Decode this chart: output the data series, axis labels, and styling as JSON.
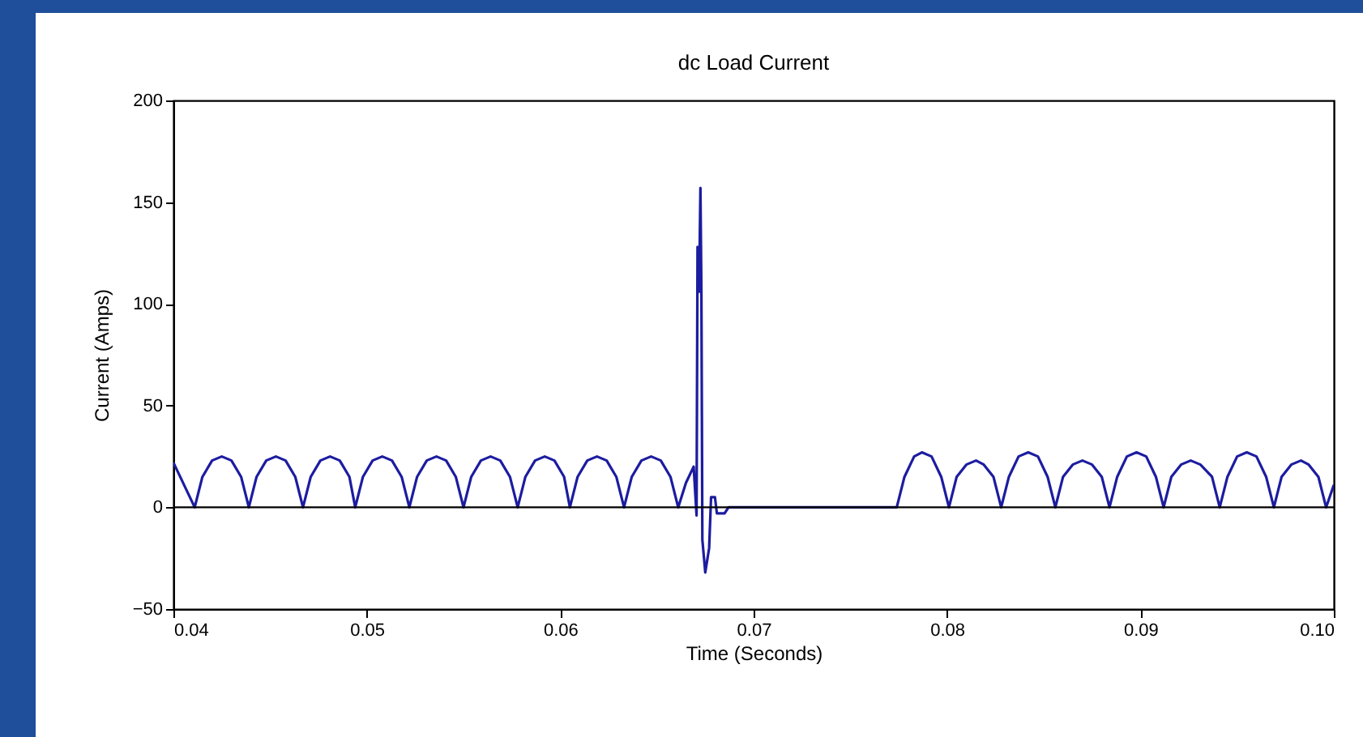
{
  "chart_data": {
    "type": "line",
    "title": "dc Load Current",
    "xlabel": "Time (Seconds)",
    "ylabel": "Current (Amps)",
    "x": [
      0.04,
      0.0411,
      0.0415,
      0.042,
      0.0425,
      0.043,
      0.0435,
      0.0439,
      0.0443,
      0.0448,
      0.0453,
      0.0458,
      0.0463,
      0.0467,
      0.0471,
      0.0476,
      0.0481,
      0.0486,
      0.0491,
      0.0494,
      0.0498,
      0.0503,
      0.0508,
      0.0513,
      0.0518,
      0.0522,
      0.0526,
      0.0531,
      0.0536,
      0.0541,
      0.0546,
      0.055,
      0.0554,
      0.0559,
      0.0564,
      0.0569,
      0.0574,
      0.0578,
      0.0582,
      0.0587,
      0.0592,
      0.0597,
      0.0602,
      0.0605,
      0.0609,
      0.0614,
      0.0619,
      0.0624,
      0.0629,
      0.0633,
      0.0637,
      0.0642,
      0.0647,
      0.0652,
      0.0657,
      0.0661,
      0.0665,
      0.0669,
      0.06705,
      0.0671,
      0.06718,
      0.06725,
      0.0673,
      0.06735,
      0.0675,
      0.0677,
      0.0678,
      0.068,
      0.0681,
      0.0685,
      0.0687,
      0.0774,
      0.0778,
      0.0783,
      0.0787,
      0.0792,
      0.0797,
      0.0801,
      0.0805,
      0.081,
      0.0815,
      0.0819,
      0.0824,
      0.0828,
      0.0832,
      0.0837,
      0.0842,
      0.0847,
      0.0852,
      0.0856,
      0.086,
      0.0865,
      0.087,
      0.0875,
      0.088,
      0.0884,
      0.0888,
      0.0893,
      0.0898,
      0.0903,
      0.0908,
      0.0912,
      0.0916,
      0.0921,
      0.0926,
      0.0931,
      0.0937,
      0.0941,
      0.0945,
      0.095,
      0.0955,
      0.096,
      0.0965,
      0.0969,
      0.0973,
      0.0978,
      0.0983,
      0.0987,
      0.0992,
      0.0996,
      0.1
    ],
    "series": [
      {
        "color": "#1c1ca0",
        "values": [
          22,
          0,
          15,
          23,
          25,
          23,
          15,
          0,
          15,
          23,
          25,
          23,
          15,
          0,
          15,
          23,
          25,
          23,
          15,
          0,
          15,
          23,
          25,
          23,
          15,
          0,
          15,
          23,
          25,
          23,
          15,
          0,
          15,
          23,
          25,
          23,
          15,
          0,
          15,
          23,
          25,
          23,
          15,
          0,
          15,
          23,
          25,
          23,
          15,
          0,
          15,
          23,
          25,
          23,
          15,
          0,
          12,
          20,
          -4,
          128,
          106,
          157,
          106,
          -16,
          -32,
          -20,
          5,
          5,
          -3,
          -3,
          0,
          0,
          15,
          25,
          27,
          25,
          15,
          0,
          15,
          21,
          23,
          21,
          15,
          0,
          15,
          25,
          27,
          25,
          15,
          0,
          15,
          21,
          23,
          21,
          15,
          0,
          15,
          25,
          27,
          25,
          15,
          0,
          15,
          21,
          23,
          21,
          15,
          0,
          15,
          25,
          27,
          25,
          15,
          0,
          15,
          21,
          23,
          21,
          15,
          0,
          11
        ]
      }
    ],
    "xlim": [
      0.04,
      0.1
    ],
    "xticks": [
      0.04,
      0.05,
      0.06,
      0.07,
      0.08,
      0.09,
      {
        "value": 0.1,
        "label": "0.10"
      }
    ],
    "ylim": [
      -50,
      200
    ],
    "yticks": [
      -50,
      0,
      50,
      100,
      150,
      200
    ],
    "ref_lines": [
      {
        "axis": "y",
        "value": 0,
        "color": "#000000"
      }
    ],
    "grid": false,
    "marker": "none",
    "line_style": "solid"
  }
}
